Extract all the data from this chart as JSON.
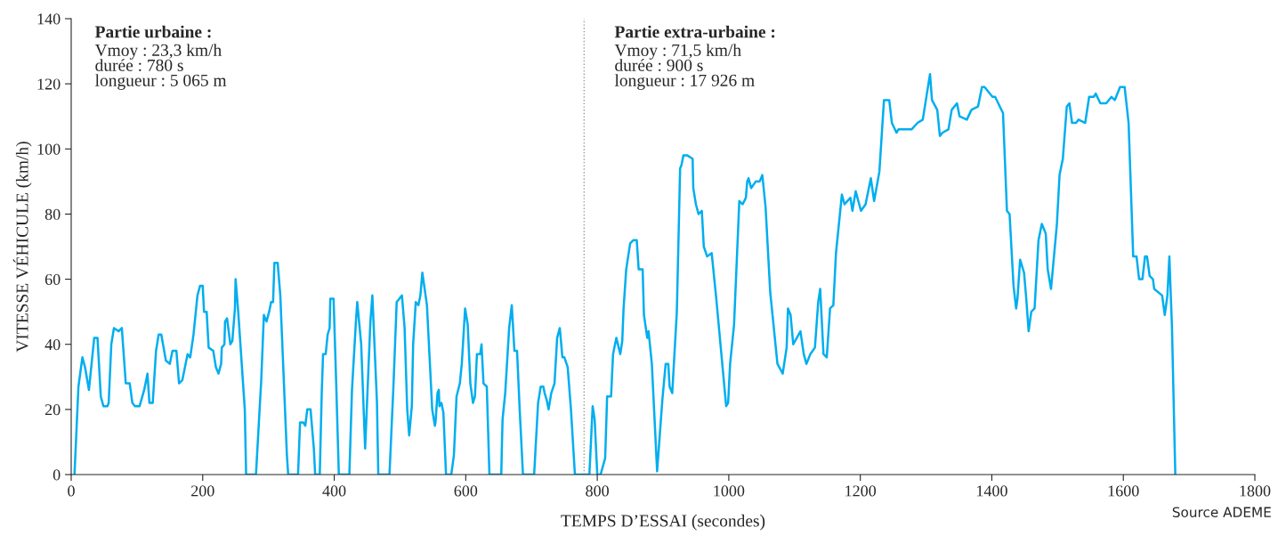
{
  "chart_data": {
    "type": "line",
    "xlabel": "TEMPS D’ESSAI (secondes)",
    "ylabel": "VITESSE VÉHICULE (km/h)",
    "annotations": [
      "Partie urbaine :",
      "Vmoy : 23,3 km/h\ndurée : 780 s\nlongueur : 5 065 m",
      "Partie extra-urbaine :",
      "Vmoy : 71,5 km/h\ndurée : 900 s\nlongueur : 17 926 m",
      "Source ADEME"
    ],
    "series": [
      {
        "color": "#00aeef",
        "x": [
          5,
          11,
          17,
          21,
          27,
          35,
          40,
          45,
          49,
          55,
          57,
          61,
          65,
          72,
          77,
          83,
          89,
          93,
          97,
          104,
          111,
          116,
          119,
          124,
          129,
          133,
          137,
          144,
          150,
          154,
          160,
          164,
          169,
          177,
          181,
          186,
          192,
          196,
          200,
          202,
          206,
          209,
          216,
          220,
          224,
          228,
          229,
          233,
          234,
          237,
          242,
          245,
          249,
          250,
          254,
          264,
          266,
          281,
          289,
          293,
          297,
          301,
          304,
          307,
          309,
          314,
          318,
          328,
          330,
          345,
          348,
          353,
          356,
          359,
          364,
          369,
          371,
          378,
          381,
          383,
          387,
          390,
          393,
          394,
          399,
          403,
          407,
          423,
          427,
          433,
          435,
          441,
          447,
          455,
          458,
          465,
          467,
          484,
          490,
          495,
          499,
          503,
          507,
          511,
          514,
          518,
          520,
          524,
          528,
          531,
          534,
          541,
          549,
          553,
          554,
          557,
          559,
          560,
          563,
          566,
          570,
          578,
          582,
          586,
          591,
          594,
          599,
          603,
          607,
          611,
          614,
          617,
          622,
          624,
          627,
          632,
          636,
          654,
          655,
          656,
          660,
          666,
          670,
          674,
          678,
          682,
          687,
          704,
          710,
          714,
          718,
          720,
          723,
          726,
          730,
          735,
          739,
          743,
          747,
          750,
          755,
          760,
          766,
          778,
          788,
          793,
          796,
          800,
          805,
          812,
          815,
          821,
          824,
          829,
          835,
          838,
          840,
          844,
          850,
          855,
          860,
          863,
          869,
          871,
          876,
          878,
          883,
          891,
          899,
          904,
          908,
          910,
          914,
          921,
          926,
          928,
          931,
          937,
          945,
          946,
          950,
          954,
          959,
          962,
          967,
          974,
          981,
          996,
          999,
          1002,
          1008,
          1016,
          1021,
          1026,
          1028,
          1030,
          1034,
          1041,
          1047,
          1051,
          1056,
          1063,
          1074,
          1082,
          1088,
          1090,
          1094,
          1098,
          1109,
          1114,
          1118,
          1124,
          1131,
          1136,
          1139,
          1144,
          1149,
          1154,
          1159,
          1163,
          1172,
          1176,
          1185,
          1188,
          1193,
          1201,
          1208,
          1216,
          1221,
          1229,
          1236,
          1244,
          1248,
          1255,
          1258,
          1278,
          1287,
          1295,
          1306,
          1309,
          1317,
          1321,
          1325,
          1334,
          1339,
          1347,
          1351,
          1362,
          1369,
          1379,
          1385,
          1389,
          1401,
          1405,
          1417,
          1423,
          1427,
          1433,
          1437,
          1439,
          1443,
          1449,
          1452,
          1456,
          1460,
          1465,
          1471,
          1476,
          1482,
          1485,
          1490,
          1499,
          1503,
          1508,
          1514,
          1518,
          1522,
          1528,
          1532,
          1542,
          1548,
          1555,
          1558,
          1565,
          1574,
          1582,
          1587,
          1595,
          1602,
          1608,
          1615,
          1620,
          1624,
          1629,
          1633,
          1636,
          1640,
          1645,
          1647,
          1659,
          1663,
          1667,
          1670,
          1674,
          1679
        ],
        "values": [
          0,
          27,
          36,
          33,
          26,
          42,
          42,
          24,
          21,
          21,
          22,
          40,
          45,
          44,
          45,
          28,
          28,
          22,
          21,
          21,
          26,
          31,
          22,
          22,
          38,
          43,
          43,
          35,
          34,
          38,
          38,
          28,
          29,
          37,
          36,
          43,
          55,
          58,
          58,
          50,
          50,
          39,
          38,
          33,
          31,
          34,
          39,
          40,
          47,
          48,
          40,
          41,
          51,
          60,
          50,
          20,
          0,
          0,
          29,
          49,
          47,
          50,
          53,
          53,
          65,
          65,
          55,
          6,
          0,
          0,
          16,
          16,
          15,
          20,
          20,
          8,
          0,
          0,
          25,
          37,
          37,
          43,
          45,
          54,
          54,
          28,
          0,
          0,
          26,
          47,
          53,
          40,
          8,
          47,
          55,
          22,
          0,
          0,
          27,
          53,
          54,
          55,
          45,
          20,
          12,
          21,
          40,
          53,
          52,
          55,
          62,
          52,
          20,
          15,
          16,
          25,
          26,
          21,
          22,
          19,
          0,
          0,
          6,
          24,
          28,
          34,
          51,
          46,
          28,
          22,
          24,
          37,
          37,
          40,
          28,
          27,
          0,
          0,
          9,
          17,
          25,
          45,
          52,
          38,
          38,
          20,
          0,
          0,
          22,
          27,
          27,
          25,
          23,
          20,
          25,
          28,
          42,
          45,
          36,
          36,
          33,
          20,
          0,
          0,
          0,
          21,
          17,
          0,
          0,
          5,
          24,
          24,
          37,
          42,
          37,
          41,
          51,
          63,
          71,
          72,
          72,
          63,
          63,
          49,
          42,
          44,
          34,
          1,
          23,
          34,
          34,
          27,
          25,
          50,
          94,
          95,
          98,
          98,
          97,
          88,
          83,
          80,
          81,
          70,
          67,
          68,
          54,
          21,
          22,
          34,
          46,
          84,
          83,
          85,
          90,
          91,
          88,
          90,
          90,
          92,
          82,
          56,
          34,
          31,
          39,
          51,
          49,
          40,
          44,
          37,
          34,
          37,
          39,
          53,
          57,
          37,
          36,
          51,
          52,
          68,
          86,
          83,
          85,
          81,
          87,
          81,
          83,
          91,
          84,
          93,
          115,
          115,
          108,
          105,
          106,
          106,
          108,
          109,
          123,
          115,
          112,
          104,
          105,
          106,
          112,
          114,
          110,
          109,
          112,
          113,
          119,
          119,
          116,
          116,
          111,
          81,
          80,
          58,
          51,
          54,
          66,
          62,
          55,
          44,
          50,
          51,
          72,
          77,
          74,
          63,
          57,
          77,
          92,
          97,
          113,
          114,
          108,
          108,
          109,
          108,
          116,
          116,
          117,
          114,
          114,
          116,
          115,
          119,
          119,
          108,
          67,
          67,
          60,
          60,
          67,
          67,
          61,
          60,
          57,
          55,
          49,
          55,
          67,
          45,
          0
        ]
      }
    ],
    "xlim": [
      0,
      1800
    ],
    "xticks": [
      0,
      200,
      400,
      600,
      800,
      1000,
      1200,
      1400,
      1600,
      1800
    ],
    "ylim": [
      0,
      140
    ],
    "yticks": [
      0,
      20,
      40,
      60,
      80,
      100,
      120,
      140
    ],
    "ref_lines": [
      {
        "axis": "x",
        "value": 780,
        "color": "#999999",
        "line_style": "dotted"
      }
    ],
    "grid": false,
    "legend": false,
    "marker": "none",
    "line_style": "solid"
  }
}
